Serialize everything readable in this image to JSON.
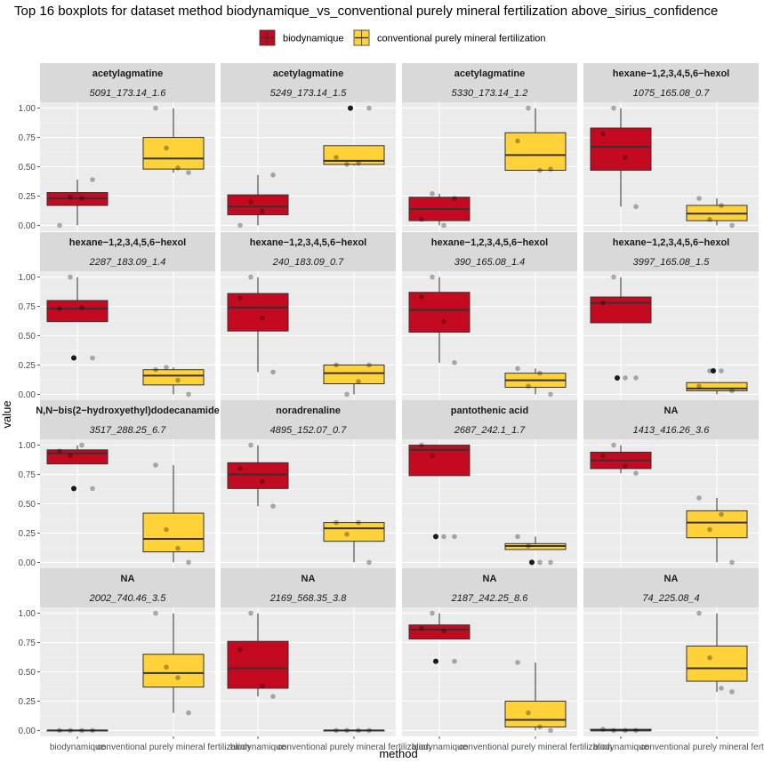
{
  "chart_data": {
    "type": "boxplot",
    "title": "Top 16 boxplots for dataset method biodynamique_vs_conventional purely mineral fertilization above_sirius_confidence",
    "xlabel": "method",
    "ylabel": "value",
    "categories": [
      "biodynamique",
      "conventional purely mineral fertilization"
    ],
    "legend": [
      {
        "name": "biodynamique",
        "color": "#C40A21"
      },
      {
        "name": "conventional purely mineral fertilization",
        "color": "#FFD23A"
      }
    ],
    "y_ticks": [
      "0.00",
      "0.25",
      "0.50",
      "0.75",
      "1.00"
    ],
    "ylim": [
      -0.05,
      1.05
    ],
    "panels": [
      {
        "strip1": "acetylagmatine",
        "strip2": "5091_173.14_1.6",
        "boxes": [
          {
            "q1": 0.17,
            "median": 0.23,
            "q3": 0.28,
            "lo": 0.0,
            "hi": 0.39,
            "points": [
              0.0,
              0.24,
              0.23,
              0.39
            ],
            "outliers": []
          },
          {
            "q1": 0.48,
            "median": 0.57,
            "q3": 0.75,
            "lo": 0.45,
            "hi": 1.0,
            "points": [
              1.0,
              0.66,
              0.49,
              0.45
            ],
            "outliers": []
          }
        ]
      },
      {
        "strip1": "acetylagmatine",
        "strip2": "5249_173.14_1.5",
        "boxes": [
          {
            "q1": 0.09,
            "median": 0.16,
            "q3": 0.26,
            "lo": 0.0,
            "hi": 0.43,
            "points": [
              0.0,
              0.2,
              0.12,
              0.43
            ],
            "outliers": []
          },
          {
            "q1": 0.52,
            "median": 0.55,
            "q3": 0.68,
            "lo": 0.51,
            "hi": 0.68,
            "points": [
              0.58,
              0.52,
              0.53,
              1.0
            ],
            "outliers": [
              1.0
            ]
          }
        ]
      },
      {
        "strip1": "acetylagmatine",
        "strip2": "5330_173.14_1.2",
        "boxes": [
          {
            "q1": 0.04,
            "median": 0.14,
            "q3": 0.24,
            "lo": 0.0,
            "hi": 0.27,
            "points": [
              0.05,
              0.27,
              0.0,
              0.23
            ],
            "outliers": []
          },
          {
            "q1": 0.47,
            "median": 0.6,
            "q3": 0.79,
            "lo": 0.47,
            "hi": 1.0,
            "points": [
              0.72,
              1.0,
              0.47,
              0.48
            ],
            "outliers": []
          }
        ]
      },
      {
        "strip1": "hexane−1,2,3,4,5,6−hexol",
        "strip2": "1075_165.08_0.7",
        "boxes": [
          {
            "q1": 0.47,
            "median": 0.67,
            "q3": 0.83,
            "lo": 0.16,
            "hi": 1.0,
            "points": [
              0.78,
              1.0,
              0.58,
              0.16
            ],
            "outliers": []
          },
          {
            "q1": 0.04,
            "median": 0.1,
            "q3": 0.17,
            "lo": 0.0,
            "hi": 0.23,
            "points": [
              0.23,
              0.05,
              0.17,
              0.0
            ],
            "outliers": []
          }
        ]
      },
      {
        "strip1": "hexane−1,2,3,4,5,6−hexol",
        "strip2": "2287_183.09_1.4",
        "boxes": [
          {
            "q1": 0.62,
            "median": 0.73,
            "q3": 0.8,
            "lo": 0.62,
            "hi": 1.0,
            "points": [
              0.73,
              1.0,
              0.74,
              0.31
            ],
            "outliers": [
              0.31
            ]
          },
          {
            "q1": 0.08,
            "median": 0.16,
            "q3": 0.21,
            "lo": 0.0,
            "hi": 0.23,
            "points": [
              0.21,
              0.23,
              0.12,
              0.0
            ],
            "outliers": []
          }
        ]
      },
      {
        "strip1": "hexane−1,2,3,4,5,6−hexol",
        "strip2": "240_183.09_0.7",
        "boxes": [
          {
            "q1": 0.54,
            "median": 0.74,
            "q3": 0.86,
            "lo": 0.19,
            "hi": 1.0,
            "points": [
              0.82,
              1.0,
              0.65,
              0.19
            ],
            "outliers": []
          },
          {
            "q1": 0.09,
            "median": 0.18,
            "q3": 0.25,
            "lo": 0.0,
            "hi": 0.25,
            "points": [
              0.25,
              0.0,
              0.11,
              0.25
            ],
            "outliers": []
          }
        ]
      },
      {
        "strip1": "hexane−1,2,3,4,5,6−hexol",
        "strip2": "390_165.08_1.4",
        "boxes": [
          {
            "q1": 0.53,
            "median": 0.72,
            "q3": 0.87,
            "lo": 0.27,
            "hi": 1.0,
            "points": [
              0.83,
              1.0,
              0.62,
              0.27
            ],
            "outliers": []
          },
          {
            "q1": 0.06,
            "median": 0.12,
            "q3": 0.18,
            "lo": 0.0,
            "hi": 0.22,
            "points": [
              0.22,
              0.07,
              0.18,
              0.0
            ],
            "outliers": []
          }
        ]
      },
      {
        "strip1": "hexane−1,2,3,4,5,6−hexol",
        "strip2": "3997_165.08_1.5",
        "boxes": [
          {
            "q1": 0.61,
            "median": 0.78,
            "q3": 0.83,
            "lo": 0.61,
            "hi": 1.0,
            "points": [
              0.78,
              1.0,
              0.14,
              0.14
            ],
            "outliers": [
              0.14
            ]
          },
          {
            "q1": 0.03,
            "median": 0.05,
            "q3": 0.1,
            "lo": 0.0,
            "hi": 0.1,
            "points": [
              0.07,
              0.2,
              0.2,
              0.03
            ],
            "outliers": [
              0.2
            ]
          }
        ]
      },
      {
        "strip1": "N,N−bis(2−hydroxyethyl)dodecanamide",
        "strip2": "3517_288.25_6.7",
        "boxes": [
          {
            "q1": 0.84,
            "median": 0.93,
            "q3": 0.96,
            "lo": 0.84,
            "hi": 1.0,
            "points": [
              0.95,
              0.91,
              1.0,
              0.63
            ],
            "outliers": [
              0.63
            ]
          },
          {
            "q1": 0.09,
            "median": 0.2,
            "q3": 0.42,
            "lo": 0.0,
            "hi": 0.83,
            "points": [
              0.83,
              0.28,
              0.12,
              0.0
            ],
            "outliers": []
          }
        ]
      },
      {
        "strip1": "noradrenaline",
        "strip2": "4895_152.07_0.7",
        "boxes": [
          {
            "q1": 0.63,
            "median": 0.75,
            "q3": 0.85,
            "lo": 0.48,
            "hi": 1.0,
            "points": [
              0.8,
              1.0,
              0.69,
              0.48
            ],
            "outliers": []
          },
          {
            "q1": 0.18,
            "median": 0.29,
            "q3": 0.34,
            "lo": 0.0,
            "hi": 0.34,
            "points": [
              0.34,
              0.24,
              0.34,
              0.0
            ],
            "outliers": []
          }
        ]
      },
      {
        "strip1": "pantothenic acid",
        "strip2": "2687_242.1_1.7",
        "boxes": [
          {
            "q1": 0.74,
            "median": 0.96,
            "q3": 1.0,
            "lo": 0.74,
            "hi": 1.0,
            "points": [
              1.0,
              0.91,
              0.22,
              0.22
            ],
            "outliers": [
              0.22
            ]
          },
          {
            "q1": 0.11,
            "median": 0.14,
            "q3": 0.16,
            "lo": 0.11,
            "hi": 0.22,
            "points": [
              0.22,
              0.14,
              0.0,
              0.0
            ],
            "outliers": [
              0.0
            ]
          }
        ]
      },
      {
        "strip1": "NA",
        "strip2": "1413_416.26_3.6",
        "boxes": [
          {
            "q1": 0.8,
            "median": 0.87,
            "q3": 0.94,
            "lo": 0.76,
            "hi": 1.0,
            "points": [
              0.91,
              1.0,
              0.82,
              0.76
            ],
            "outliers": []
          },
          {
            "q1": 0.21,
            "median": 0.34,
            "q3": 0.44,
            "lo": 0.0,
            "hi": 0.55,
            "points": [
              0.55,
              0.28,
              0.41,
              0.0
            ],
            "outliers": []
          }
        ]
      },
      {
        "strip1": "NA",
        "strip2": "2002_740.46_3.5",
        "boxes": [
          {
            "q1": 0.0,
            "median": 0.0,
            "q3": 0.0,
            "lo": 0.0,
            "hi": 0.0,
            "points": [
              0.0,
              0.0,
              0.0,
              0.0
            ],
            "outliers": []
          },
          {
            "q1": 0.37,
            "median": 0.49,
            "q3": 0.65,
            "lo": 0.15,
            "hi": 1.0,
            "points": [
              1.0,
              0.54,
              0.45,
              0.15
            ],
            "outliers": []
          }
        ]
      },
      {
        "strip1": "NA",
        "strip2": "2169_568.35_3.8",
        "boxes": [
          {
            "q1": 0.36,
            "median": 0.53,
            "q3": 0.76,
            "lo": 0.29,
            "hi": 1.0,
            "points": [
              0.69,
              1.0,
              0.38,
              0.29
            ],
            "outliers": []
          },
          {
            "q1": 0.0,
            "median": 0.0,
            "q3": 0.0,
            "lo": 0.0,
            "hi": 0.0,
            "points": [
              0.0,
              0.0,
              0.0,
              0.0
            ],
            "outliers": []
          }
        ]
      },
      {
        "strip1": "NA",
        "strip2": "2187_242.25_8.6",
        "boxes": [
          {
            "q1": 0.78,
            "median": 0.86,
            "q3": 0.9,
            "lo": 0.78,
            "hi": 1.0,
            "points": [
              0.87,
              1.0,
              0.85,
              0.59
            ],
            "outliers": [
              0.59
            ]
          },
          {
            "q1": 0.03,
            "median": 0.09,
            "q3": 0.25,
            "lo": 0.0,
            "hi": 0.58,
            "points": [
              0.58,
              0.15,
              0.03,
              0.0
            ],
            "outliers": []
          }
        ]
      },
      {
        "strip1": "NA",
        "strip2": "74_225.08_4",
        "boxes": [
          {
            "q1": 0.0,
            "median": 0.0,
            "q3": 0.01,
            "lo": 0.0,
            "hi": 0.01,
            "points": [
              0.01,
              0.0,
              0.0,
              0.0
            ],
            "outliers": []
          },
          {
            "q1": 0.42,
            "median": 0.53,
            "q3": 0.72,
            "lo": 0.33,
            "hi": 1.0,
            "points": [
              1.0,
              0.62,
              0.36,
              0.33
            ],
            "outliers": []
          }
        ]
      }
    ]
  }
}
